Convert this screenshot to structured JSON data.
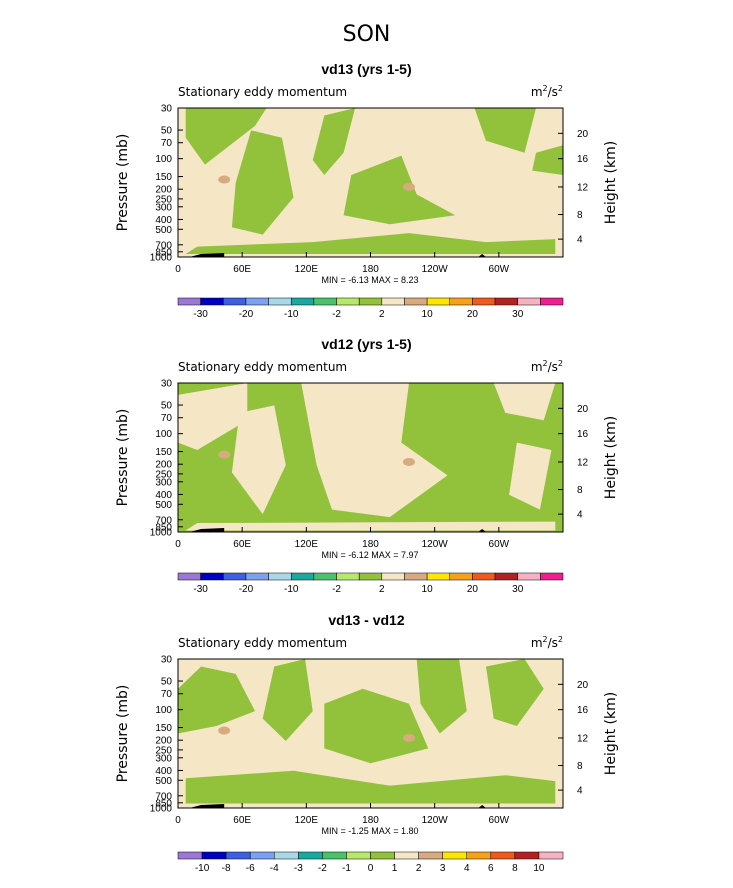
{
  "page_title": "SON",
  "colors": {
    "c1": "#9b77d6",
    "c2": "#0000c4",
    "c3": "#3e5fe0",
    "c4": "#7ba1f0",
    "c5": "#a8d8e8",
    "c6": "#1aa8a0",
    "c7": "#49c26b",
    "c8": "#b6e86a",
    "c9": "#92c13c",
    "c10": "#f5e6c6",
    "c11": "#d8aa80",
    "c12": "#ffe600",
    "c13": "#f7a11b",
    "c14": "#ef5a1e",
    "c15": "#b22222",
    "c16": "#f6b1c3",
    "c17": "#ee1f8f",
    "land_black": "#000000"
  },
  "chart_data": [
    {
      "type": "heatmap",
      "title": "vd13 (yrs 1-5)",
      "subtitle": "Stationary eddy momentum",
      "units_main": "m",
      "units_sup1": "2",
      "units_mid": "/s",
      "units_sup2": "2",
      "ylabel": "Pressure (mb)",
      "y2label": "Height (km)",
      "x_ticks": [
        "0",
        "60E",
        "120E",
        "180",
        "120W",
        "60W"
      ],
      "y_ticks": [
        "30",
        "50",
        "70",
        "100",
        "150",
        "200",
        "250",
        "300",
        "400",
        "500",
        "700",
        "850",
        "1000"
      ],
      "y2_ticks": [
        "20",
        "16",
        "12",
        "8",
        "4"
      ],
      "min_label": "MIN =",
      "min_value": "-6.13",
      "max_label": "MAX =",
      "max_value": "8.23",
      "colorbar_labels": [
        "-30",
        "-20",
        "-10",
        "-2",
        "2",
        "10",
        "20",
        "30"
      ]
    },
    {
      "type": "heatmap",
      "title": "vd12 (yrs 1-5)",
      "subtitle": "Stationary eddy momentum",
      "units_main": "m",
      "units_sup1": "2",
      "units_mid": "/s",
      "units_sup2": "2",
      "ylabel": "Pressure (mb)",
      "y2label": "Height (km)",
      "x_ticks": [
        "0",
        "60E",
        "120E",
        "180",
        "120W",
        "60W"
      ],
      "y_ticks": [
        "30",
        "50",
        "70",
        "100",
        "150",
        "200",
        "250",
        "300",
        "400",
        "500",
        "700",
        "850",
        "1000"
      ],
      "y2_ticks": [
        "20",
        "16",
        "12",
        "8",
        "4"
      ],
      "min_label": "MIN =",
      "min_value": "-6.12",
      "max_label": "MAX =",
      "max_value": "7.97",
      "colorbar_labels": [
        "-30",
        "-20",
        "-10",
        "-2",
        "2",
        "10",
        "20",
        "30"
      ]
    },
    {
      "type": "heatmap",
      "title": "vd13 - vd12",
      "subtitle": "Stationary eddy momentum",
      "units_main": "m",
      "units_sup1": "2",
      "units_mid": "/s",
      "units_sup2": "2",
      "ylabel": "Pressure (mb)",
      "y2label": "Height (km)",
      "x_ticks": [
        "0",
        "60E",
        "120E",
        "180",
        "120W",
        "60W"
      ],
      "y_ticks": [
        "30",
        "50",
        "70",
        "100",
        "150",
        "200",
        "250",
        "300",
        "400",
        "500",
        "700",
        "850",
        "1000"
      ],
      "y2_ticks": [
        "20",
        "16",
        "12",
        "8",
        "4"
      ],
      "min_label": "MIN =",
      "min_value": "-1.25",
      "max_label": "MAX =",
      "max_value": "1.80",
      "colorbar_labels": [
        "-10",
        "-8",
        "-6",
        "-4",
        "-3",
        "-2",
        "-1",
        "0",
        "1",
        "2",
        "3",
        "4",
        "6",
        "8",
        "10"
      ]
    }
  ]
}
